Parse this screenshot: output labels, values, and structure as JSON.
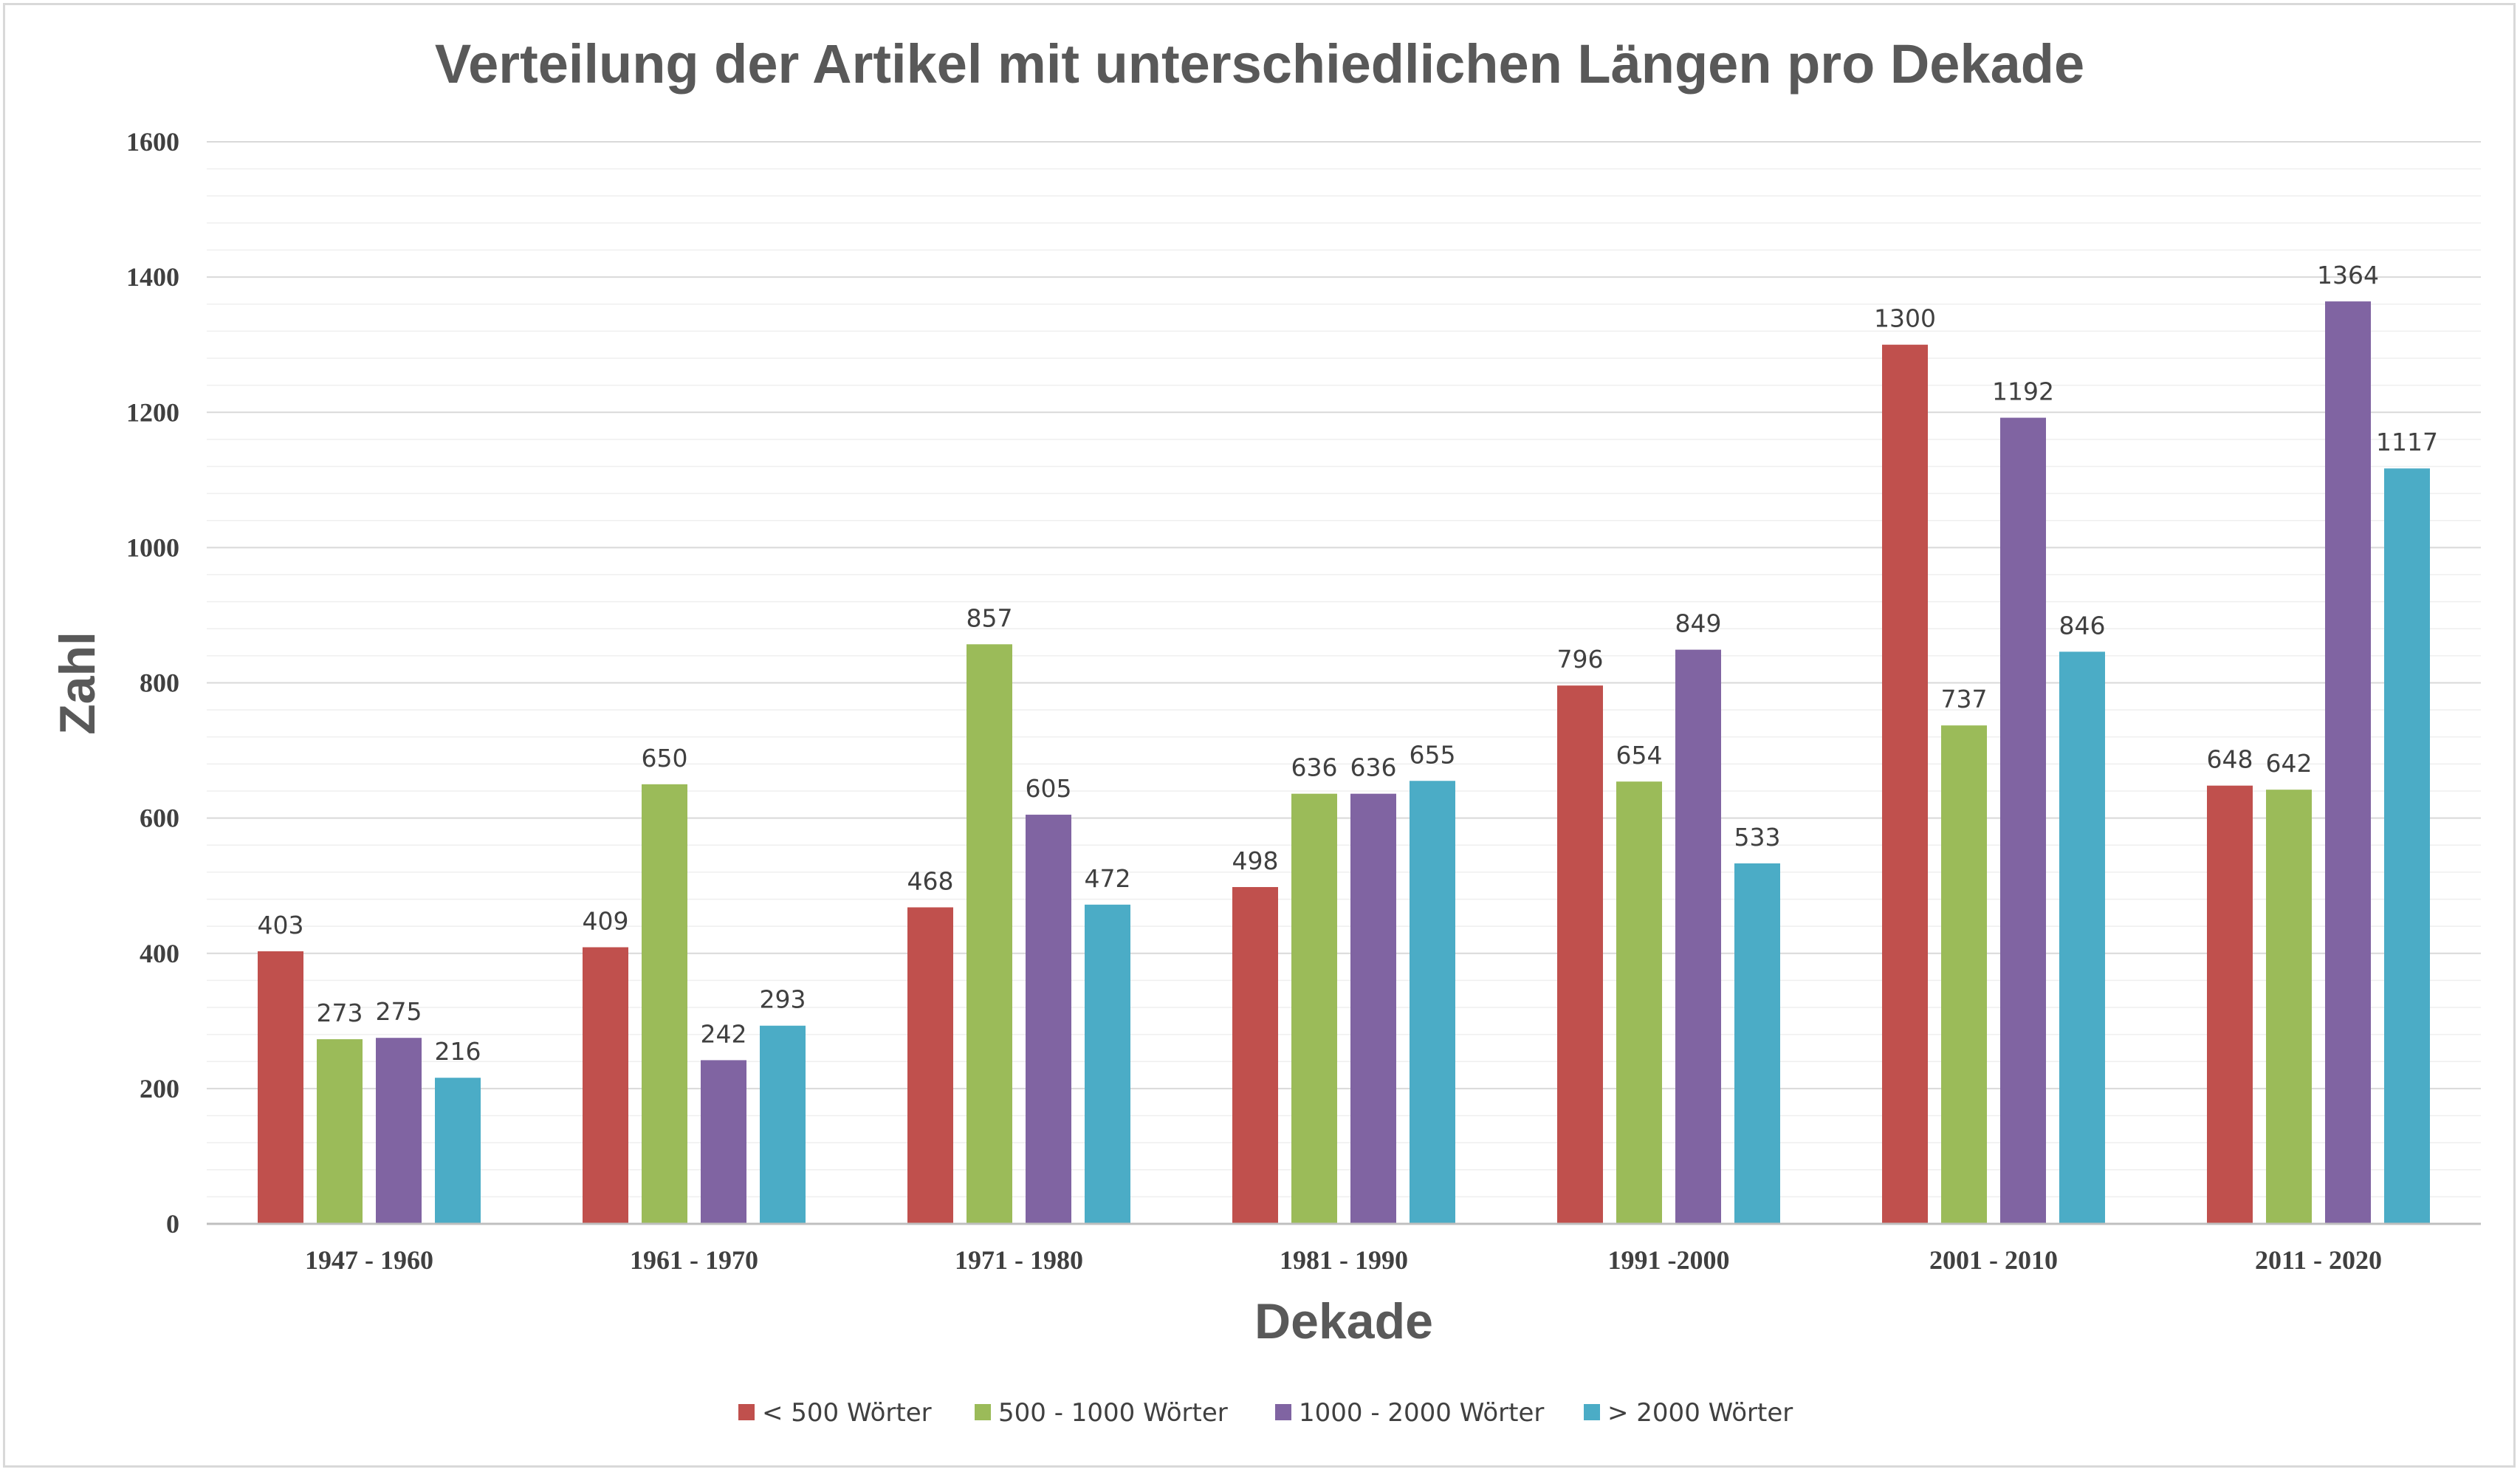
{
  "chart_data": {
    "type": "bar",
    "title": "Verteilung der Artikel mit unterschiedlichen Längen pro Dekade",
    "xlabel": "Dekade",
    "ylabel": "Zahl",
    "ylim": [
      0,
      1600
    ],
    "yticks": [
      "0",
      "200",
      "400",
      "600",
      "800",
      "1000",
      "1200",
      "1400",
      "1600"
    ],
    "grid": true,
    "legend_position": "bottom",
    "categories": [
      "1947 - 1960",
      "1961 - 1970",
      "1971 - 1980",
      "1981 - 1990",
      "1991 -2000",
      "2001 - 2010",
      "2011 - 2020"
    ],
    "series": [
      {
        "name": "< 500 Wörter",
        "color": "#c0504d",
        "values": [
          403,
          409,
          468,
          498,
          796,
          1300,
          648
        ]
      },
      {
        "name": "500 - 1000 Wörter",
        "color": "#9bbb59",
        "values": [
          273,
          650,
          857,
          636,
          654,
          737,
          642
        ]
      },
      {
        "name": "1000 - 2000 Wörter",
        "color": "#8064a2",
        "values": [
          275,
          242,
          605,
          636,
          849,
          1192,
          1364
        ]
      },
      {
        "name": "> 2000 Wörter",
        "color": "#4bacc6",
        "values": [
          216,
          293,
          472,
          655,
          533,
          846,
          1117
        ]
      }
    ]
  }
}
